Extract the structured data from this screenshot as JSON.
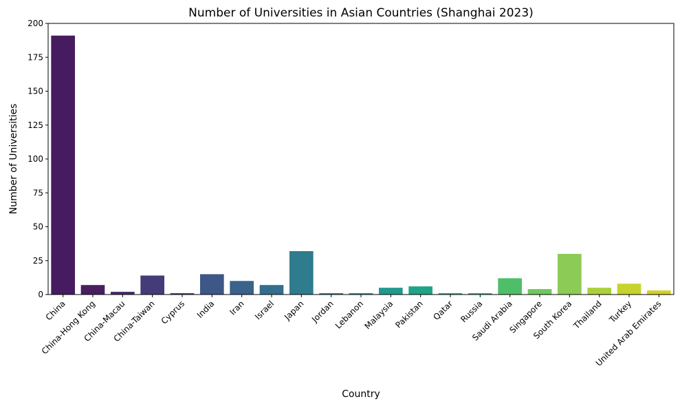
{
  "chart_data": {
    "type": "bar",
    "title": "Number of Universities in Asian Countries (Shanghai 2023)",
    "xlabel": "Country",
    "ylabel": "Number of Universities",
    "ylim": [
      0,
      200
    ],
    "yticks": [
      0,
      25,
      50,
      75,
      100,
      125,
      150,
      175,
      200
    ],
    "grid": false,
    "categories": [
      "China",
      "China-Hong Kong",
      "China-Macau",
      "China-Taiwan",
      "Cyprus",
      "India",
      "Iran",
      "Israel",
      "Japan",
      "Jordan",
      "Lebanon",
      "Malaysia",
      "Pakistan",
      "Qatar",
      "Russia",
      "Saudi Arabia",
      "Singapore",
      "South Korea",
      "Thailand",
      "Turkey",
      "United Arab Emirates"
    ],
    "values": [
      191,
      7,
      2,
      14,
      1,
      15,
      10,
      7,
      32,
      1,
      1,
      5,
      6,
      1,
      1,
      12,
      4,
      30,
      5,
      8,
      3
    ],
    "colors": [
      "#471b5f",
      "#481f61",
      "#472c6c",
      "#433c78",
      "#40467e",
      "#3d5887",
      "#3a628b",
      "#336e8c",
      "#2e7c8e",
      "#2a878e",
      "#26918e",
      "#21998c",
      "#20a387",
      "#25ad82",
      "#2eb47c",
      "#4ebf68",
      "#70c75e",
      "#8ccb56",
      "#acd03c",
      "#c5d32c",
      "#d3d127"
    ]
  }
}
